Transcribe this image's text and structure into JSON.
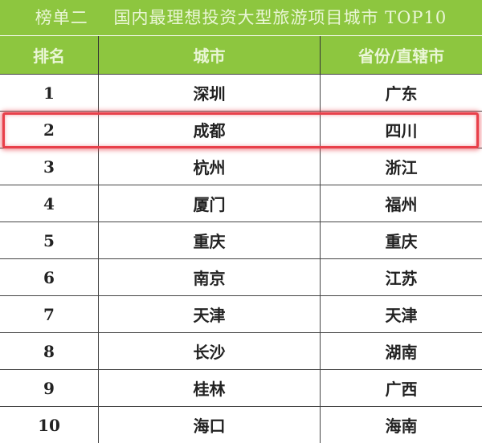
{
  "title": {
    "list": "榜单二",
    "text": "国内最理想投资大型旅游项目城市 TOP10"
  },
  "columns": [
    "排名",
    "城市",
    "省份/直辖市"
  ],
  "rows": [
    {
      "rank": "1",
      "city": "深圳",
      "province": "广东"
    },
    {
      "rank": "2",
      "city": "成都",
      "province": "四川"
    },
    {
      "rank": "3",
      "city": "杭州",
      "province": "浙江"
    },
    {
      "rank": "4",
      "city": "厦门",
      "province": "福州"
    },
    {
      "rank": "5",
      "city": "重庆",
      "province": "重庆"
    },
    {
      "rank": "6",
      "city": "南京",
      "province": "江苏"
    },
    {
      "rank": "7",
      "city": "天津",
      "province": "天津"
    },
    {
      "rank": "8",
      "city": "长沙",
      "province": "湖南"
    },
    {
      "rank": "9",
      "city": "桂林",
      "province": "广西"
    },
    {
      "rank": "10",
      "city": "海口",
      "province": "海南"
    }
  ],
  "highlighted_rank": "2",
  "colors": {
    "header": "#8dc63f",
    "highlight": "#e8404a"
  }
}
